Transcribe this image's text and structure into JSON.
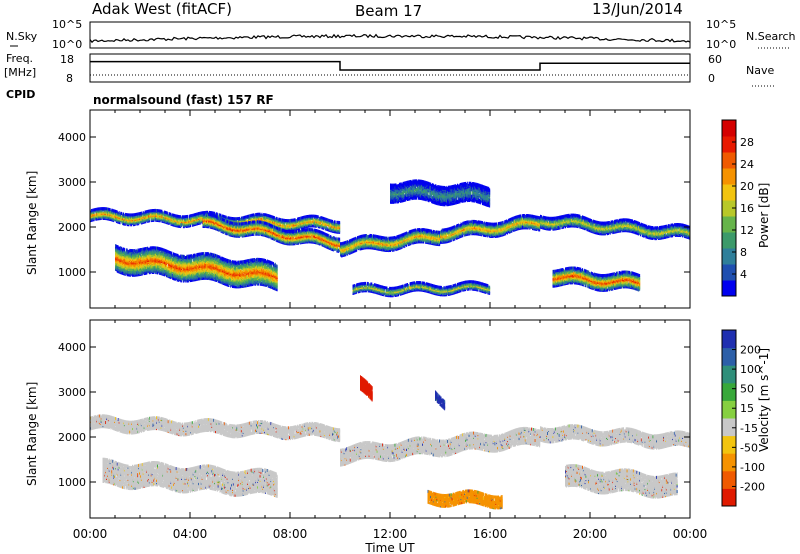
{
  "header": {
    "station": "Adak West (fitACF)",
    "beam": "Beam 17",
    "date": "13/Jun/2014"
  },
  "noise_panel": {
    "left_label": "N.Sky",
    "right_label": "N.Search",
    "left_ticks": [
      "10^5",
      "10^0"
    ],
    "right_ticks": [
      "10^5",
      "10^0"
    ]
  },
  "freq_panel": {
    "left_label_line1": "Freq.",
    "left_label_line2": "[MHz]",
    "left_ticks": [
      "18",
      "8"
    ],
    "right_label": "Nave",
    "right_ticks": [
      "60",
      "0"
    ],
    "cpid_label": "CPID",
    "cpid_text": "normalsound (fast) 157 RF",
    "freq_steps": [
      {
        "t0": 0,
        "t1": 10,
        "mhz": 16.2
      },
      {
        "t0": 10,
        "t1": 18,
        "mhz": 12.0
      },
      {
        "t0": 18,
        "t1": 24,
        "mhz": 15.4
      }
    ]
  },
  "x_axis": {
    "label": "Time UT",
    "ticks": [
      "00:00",
      "04:00",
      "08:00",
      "12:00",
      "16:00",
      "20:00",
      "00:00"
    ]
  },
  "power_panel": {
    "ylabel": "Slant Range [km]",
    "yticks": [
      "4000",
      "3000",
      "2000",
      "1000"
    ],
    "cbar_label": "Power [dB]",
    "cbar_ticks": [
      "28",
      "24",
      "20",
      "16",
      "12",
      "8",
      "4"
    ],
    "cbar_colors": [
      "#0000ee",
      "#1f4fb0",
      "#2f7f9a",
      "#3c9a6a",
      "#66b44a",
      "#b8c829",
      "#f2c40f",
      "#f59200",
      "#f05a00",
      "#e81a00",
      "#d40000"
    ]
  },
  "velocity_panel": {
    "ylabel": "Slant Range [km]",
    "yticks": [
      "4000",
      "3000",
      "2000",
      "1000"
    ],
    "cbar_label": "Velocity [m s^-1]",
    "cbar_ticks": [
      "200",
      "100",
      "50",
      "15",
      "-15",
      "-50",
      "-100",
      "-200"
    ],
    "cbar_colors": [
      "#1f2fb0",
      "#2c5fa8",
      "#2f8f7a",
      "#38a83a",
      "#86d040",
      "#c8c8c8",
      "#f2c40f",
      "#f59200",
      "#f05a00",
      "#e01a00"
    ]
  },
  "chart_data": {
    "type": "heatmap",
    "title": "Adak West (fitACF) Beam 17 13/Jun/2014",
    "xlabel": "Time UT",
    "ylabel": "Slant Range [km]",
    "xlim_hours": [
      0,
      24
    ],
    "ylim_km": [
      200,
      4600
    ],
    "power_bands": [
      {
        "t0": 0.0,
        "t1": 10.0,
        "r0": 2250,
        "r1": 2050,
        "width": 200,
        "peak_db": 24
      },
      {
        "t0": 1.0,
        "t1": 7.5,
        "r0": 1300,
        "r1": 900,
        "width": 500,
        "peak_db": 28
      },
      {
        "t0": 4.5,
        "t1": 10.0,
        "r0": 2100,
        "r1": 1650,
        "width": 250,
        "peak_db": 28
      },
      {
        "t0": 10.0,
        "t1": 14.0,
        "r0": 1550,
        "r1": 1800,
        "width": 250,
        "peak_db": 24
      },
      {
        "t0": 14.0,
        "t1": 18.0,
        "r0": 1850,
        "r1": 2100,
        "width": 250,
        "peak_db": 24
      },
      {
        "t0": 18.0,
        "t1": 24.0,
        "r0": 2150,
        "r1": 1850,
        "width": 220,
        "peak_db": 20
      },
      {
        "t0": 18.5,
        "t1": 22.0,
        "r0": 900,
        "r1": 750,
        "width": 300,
        "peak_db": 28
      },
      {
        "t0": 10.5,
        "t1": 16.0,
        "r0": 600,
        "r1": 650,
        "width": 150,
        "peak_db": 20
      },
      {
        "t0": 12.0,
        "t1": 16.0,
        "r0": 2800,
        "r1": 2700,
        "width": 350,
        "peak_db": 12
      }
    ],
    "velocity_bands": [
      {
        "t0": 0.0,
        "t1": 10.0,
        "r0": 2300,
        "r1": 2100,
        "width": 220,
        "vel": 0
      },
      {
        "t0": 0.5,
        "t1": 7.5,
        "r0": 1200,
        "r1": 950,
        "width": 450,
        "vel": 0
      },
      {
        "t0": 10.0,
        "t1": 18.0,
        "r0": 1600,
        "r1": 2000,
        "width": 300,
        "vel": 0
      },
      {
        "t0": 18.0,
        "t1": 24.0,
        "r0": 2100,
        "r1": 1900,
        "width": 250,
        "vel": 0
      },
      {
        "t0": 13.5,
        "t1": 16.5,
        "r0": 650,
        "r1": 600,
        "width": 220,
        "vel": -60
      },
      {
        "t0": 19.0,
        "t1": 23.5,
        "r0": 1100,
        "r1": 900,
        "width": 400,
        "vel": 0
      },
      {
        "t0": 10.8,
        "t1": 11.3,
        "r0": 3150,
        "r1": 2900,
        "width": 250,
        "vel": -200
      },
      {
        "t0": 13.8,
        "t1": 14.2,
        "r0": 2950,
        "r1": 2750,
        "width": 150,
        "vel": 200
      }
    ]
  }
}
